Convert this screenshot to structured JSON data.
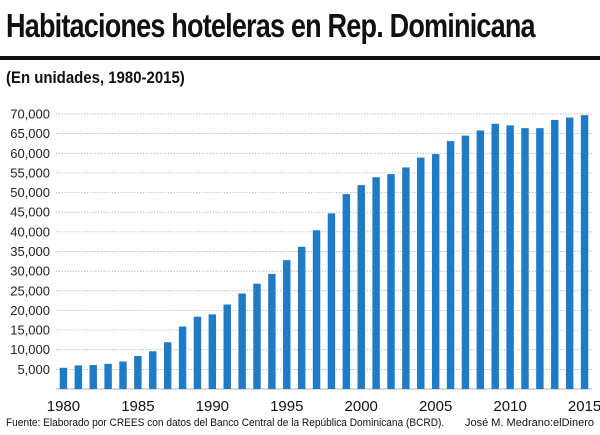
{
  "header": {
    "title": "Habitaciones hoteleras en Rep. Dominicana",
    "subtitle": "(En unidades, 1980-2015)"
  },
  "footer": {
    "source": "Fuente: Elaborado por CREES con datos del Banco Central de la República Dominicana (BCRD).",
    "credit": "José M. Medrano:elDinero"
  },
  "colors": {
    "bar": "#1f7bc6",
    "grid": "#9a9a9a",
    "rule": "#111111"
  },
  "chart_data": {
    "type": "bar",
    "title": "Habitaciones hoteleras en Rep. Dominicana",
    "subtitle": "(En unidades, 1980-2015)",
    "xlabel": "",
    "ylabel": "",
    "grid": true,
    "ylim": [
      0,
      70000
    ],
    "yticks": [
      {
        "value": 5000,
        "label": "5,000"
      },
      {
        "value": 10000,
        "label": "10,000"
      },
      {
        "value": 15000,
        "label": "15,000"
      },
      {
        "value": 20000,
        "label": "20,000"
      },
      {
        "value": 25000,
        "label": "25,000"
      },
      {
        "value": 30000,
        "label": "30,000"
      },
      {
        "value": 35000,
        "label": "35,000"
      },
      {
        "value": 40000,
        "label": "40,000"
      },
      {
        "value": 45000,
        "label": "45,000"
      },
      {
        "value": 50000,
        "label": "50,000"
      },
      {
        "value": 55000,
        "label": "55,000"
      },
      {
        "value": 60000,
        "label": "60,000"
      },
      {
        "value": 65000,
        "label": "65,000"
      },
      {
        "value": 70000,
        "label": "70,000"
      }
    ],
    "xticks": [
      "1980",
      "1985",
      "1990",
      "1995",
      "2000",
      "2005",
      "2010",
      "2015"
    ],
    "categories": [
      1980,
      1981,
      1982,
      1983,
      1984,
      1985,
      1986,
      1987,
      1988,
      1989,
      1990,
      1991,
      1992,
      1993,
      1994,
      1995,
      1996,
      1997,
      1998,
      1999,
      2000,
      2001,
      2002,
      2003,
      2004,
      2005,
      2006,
      2007,
      2008,
      2009,
      2010,
      2011,
      2012,
      2013,
      2014,
      2015
    ],
    "values": [
      5400,
      6000,
      6100,
      6400,
      7000,
      8400,
      9600,
      11900,
      15900,
      18400,
      19000,
      21500,
      24300,
      26800,
      29300,
      32800,
      36200,
      40400,
      44700,
      49600,
      51900,
      53900,
      54700,
      56400,
      58900,
      59800,
      63100,
      64500,
      65800,
      67500,
      67100,
      66400,
      66400,
      68500,
      69100,
      69700
    ]
  }
}
